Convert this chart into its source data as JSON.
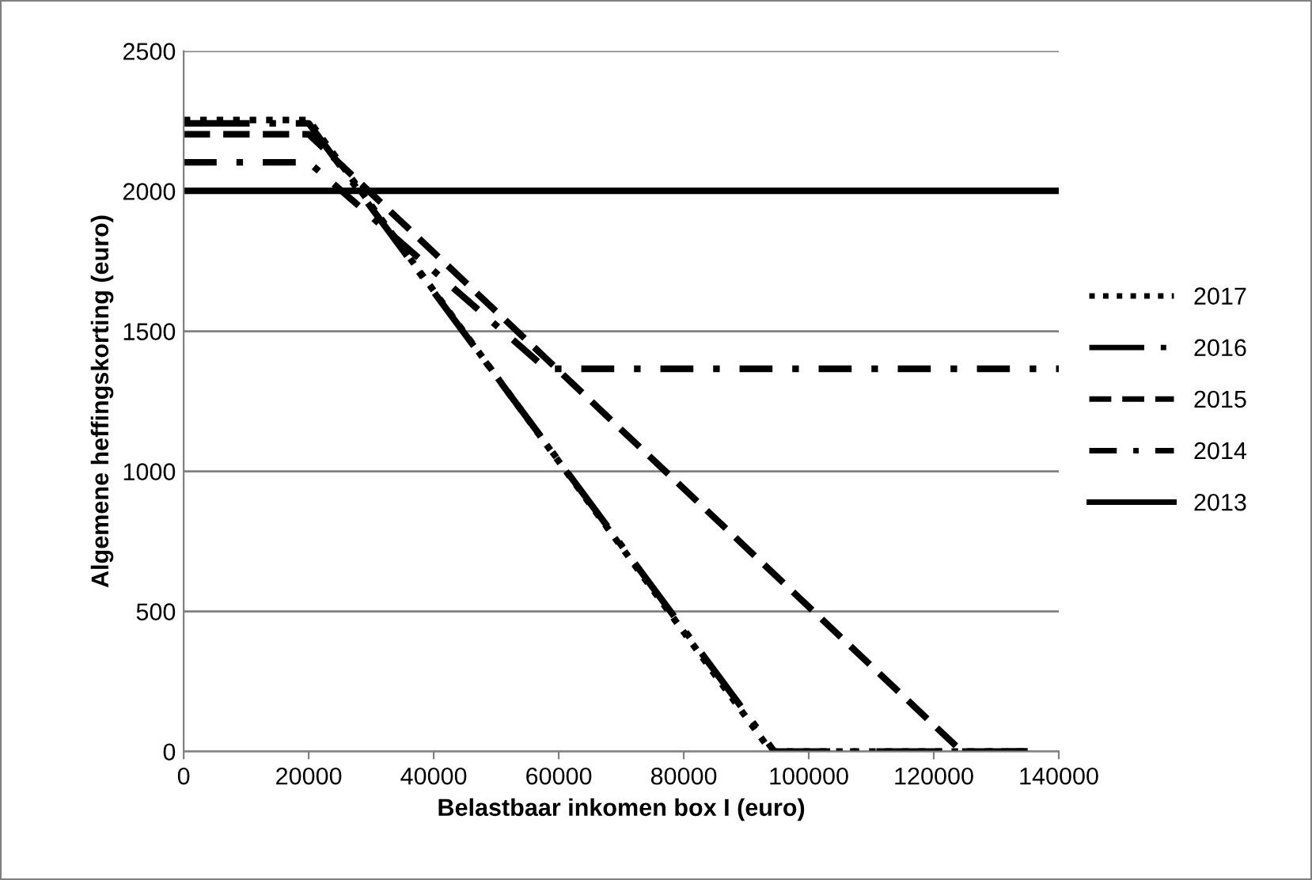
{
  "chart_data": {
    "type": "line",
    "xlabel": "Belastbaar inkomen box I (euro)",
    "ylabel": "Algemene heffingskorting (euro)",
    "xlim": [
      0,
      140000
    ],
    "xticks": [
      0,
      20000,
      40000,
      60000,
      80000,
      100000,
      120000,
      140000
    ],
    "ylim": [
      0,
      2500
    ],
    "yticks": [
      0,
      500,
      1000,
      1500,
      2000,
      2500
    ],
    "grid": "y",
    "legend": "right",
    "marker": "none",
    "series": [
      {
        "name": "2017",
        "color": "#000000",
        "line_style": "dotted",
        "x": [
          0,
          20000,
          94000,
          135000
        ],
        "values": [
          2254,
          2254,
          0,
          0
        ]
      },
      {
        "name": "2016",
        "color": "#000000",
        "line_style": "longdashdot",
        "x": [
          0,
          20000,
          94500,
          135000
        ],
        "values": [
          2242,
          2242,
          0,
          0
        ]
      },
      {
        "name": "2015",
        "color": "#000000",
        "line_style": "dashed",
        "x": [
          0,
          20000,
          124500,
          135000
        ],
        "values": [
          2203,
          2203,
          0,
          0
        ]
      },
      {
        "name": "2014",
        "color": "#000000",
        "line_style": "dashdot",
        "x": [
          0,
          20000,
          58000,
          140000
        ],
        "values": [
          2103,
          2103,
          1366,
          1366
        ]
      },
      {
        "name": "2013",
        "color": "#000000",
        "line_style": "solid",
        "x": [
          0,
          140000
        ],
        "values": [
          2001,
          2001
        ]
      }
    ]
  }
}
